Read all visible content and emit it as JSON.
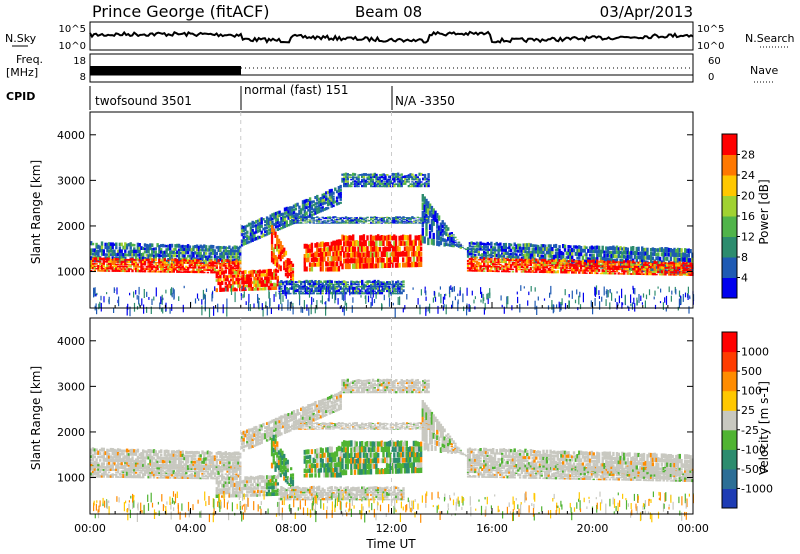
{
  "header": {
    "station": "Prince George (fitACF)",
    "beam": "Beam 08",
    "date": "03/Apr/2013"
  },
  "status_panel": {
    "nsky_label": "N.Sky",
    "nsearch_label": "N.Search",
    "freq_label_1": "Freq.",
    "freq_label_2": "[MHz]",
    "nave_label": "Nave",
    "cpid_label": "CPID",
    "noise_ticks": [
      "10^5",
      "10^0"
    ],
    "noise_ticks_right": [
      "10^5",
      "10^0"
    ],
    "freq_ticks": [
      "18",
      "8"
    ],
    "nave_ticks": [
      "60",
      "0"
    ],
    "cpid_segments": [
      {
        "label": "twofsound 3501",
        "start_hour": 0,
        "end_hour": 6
      },
      {
        "label": "normal (fast) 151",
        "start_hour": 6,
        "end_hour": 12
      },
      {
        "label": "N/A -3350",
        "start_hour": 12,
        "end_hour": 24
      }
    ]
  },
  "chart_data": [
    {
      "type": "heatmap",
      "panel": "power",
      "ylabel": "Slant Range [km]",
      "xlim_hours": [
        0,
        24
      ],
      "ylim": [
        200,
        4500
      ],
      "yticks": [
        1000,
        2000,
        3000,
        4000
      ],
      "colorbar": {
        "label": "Power [dB]",
        "ticks": [
          "4",
          "8",
          "12",
          "16",
          "20",
          "24",
          "28"
        ],
        "colors": [
          "#0000ee",
          "#1e5ab4",
          "#2c8c6e",
          "#50b44a",
          "#a0d232",
          "#ffc800",
          "#ff7800",
          "#ff0000"
        ]
      }
    },
    {
      "type": "heatmap",
      "panel": "velocity",
      "ylabel": "Slant Range [km]",
      "xlabel": "Time UT",
      "xlim_hours": [
        0,
        24
      ],
      "ylim": [
        200,
        4500
      ],
      "yticks": [
        1000,
        2000,
        3000,
        4000
      ],
      "xticks": [
        "00:00",
        "04:00",
        "08:00",
        "12:00",
        "16:00",
        "20:00",
        "00:00"
      ],
      "colorbar": {
        "label": "Velocity [m s-1]",
        "ticks": [
          "1000",
          "500",
          "100",
          "25",
          "-25",
          "-100",
          "-500",
          "-1000"
        ],
        "colors": [
          "#1e3cb4",
          "#2c6e96",
          "#2c8c6e",
          "#50b432",
          "#c8c8c0",
          "#ffc800",
          "#ff8c00",
          "#ff3c00",
          "#ff0000"
        ]
      }
    }
  ]
}
